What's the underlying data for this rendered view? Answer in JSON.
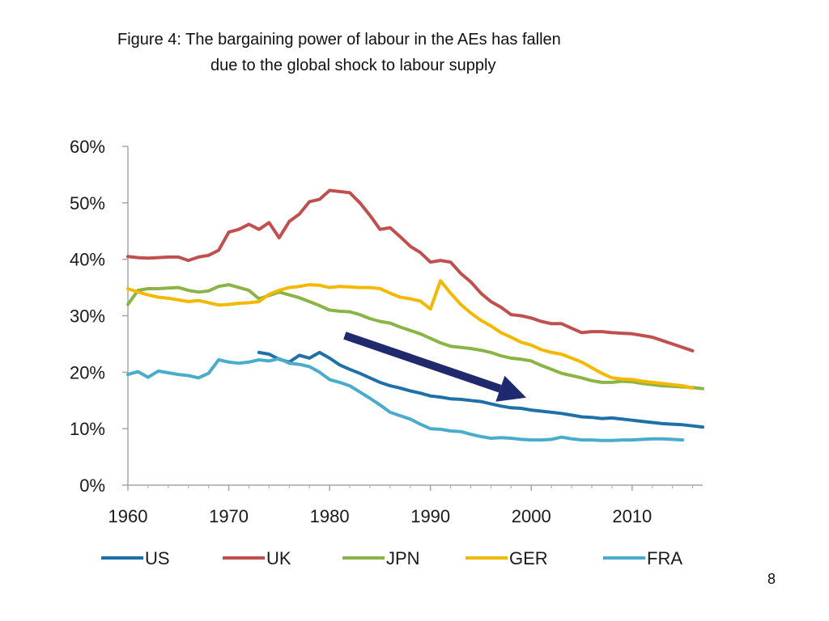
{
  "title": {
    "line1": "Figure 4:  The bargaining power of labour in the AEs has fallen",
    "line2": "due to the global shock to labour supply"
  },
  "page_number": "8",
  "chart_data": {
    "type": "line",
    "xlim": [
      1960,
      2017
    ],
    "ylim": [
      0,
      60
    ],
    "x_ticks": [
      1960,
      1970,
      1980,
      1990,
      2000,
      2010
    ],
    "x_tick_labels": [
      "1960",
      "1970",
      "1980",
      "1990",
      "2000",
      "2010"
    ],
    "y_ticks": [
      0,
      10,
      20,
      30,
      40,
      50,
      60
    ],
    "y_tick_labels": [
      "0%",
      "10%",
      "20%",
      "30%",
      "40%",
      "50%",
      "60%"
    ],
    "grid": false,
    "legend_position": "bottom",
    "series": [
      {
        "name": "US",
        "color": "#1f6fa8",
        "points": [
          [
            1973,
            23.5
          ],
          [
            1974,
            23.2
          ],
          [
            1975,
            22.3
          ],
          [
            1976,
            21.8
          ],
          [
            1977,
            23.0
          ],
          [
            1978,
            22.5
          ],
          [
            1979,
            23.5
          ],
          [
            1980,
            22.5
          ],
          [
            1981,
            21.3
          ],
          [
            1982,
            20.5
          ],
          [
            1983,
            19.8
          ],
          [
            1984,
            19.0
          ],
          [
            1985,
            18.2
          ],
          [
            1986,
            17.6
          ],
          [
            1987,
            17.2
          ],
          [
            1988,
            16.7
          ],
          [
            1989,
            16.3
          ],
          [
            1990,
            15.8
          ],
          [
            1991,
            15.6
          ],
          [
            1992,
            15.3
          ],
          [
            1993,
            15.2
          ],
          [
            1994,
            15.0
          ],
          [
            1995,
            14.8
          ],
          [
            1996,
            14.4
          ],
          [
            1997,
            14.0
          ],
          [
            1998,
            13.7
          ],
          [
            1999,
            13.6
          ],
          [
            2000,
            13.3
          ],
          [
            2001,
            13.1
          ],
          [
            2002,
            12.9
          ],
          [
            2003,
            12.7
          ],
          [
            2004,
            12.4
          ],
          [
            2005,
            12.1
          ],
          [
            2006,
            12.0
          ],
          [
            2007,
            11.8
          ],
          [
            2008,
            11.9
          ],
          [
            2009,
            11.7
          ],
          [
            2010,
            11.5
          ],
          [
            2011,
            11.3
          ],
          [
            2012,
            11.1
          ],
          [
            2013,
            10.9
          ],
          [
            2014,
            10.8
          ],
          [
            2015,
            10.7
          ],
          [
            2016,
            10.5
          ],
          [
            2017,
            10.3
          ]
        ]
      },
      {
        "name": "UK",
        "color": "#c0504d",
        "points": [
          [
            1960,
            40.5
          ],
          [
            1961,
            40.3
          ],
          [
            1962,
            40.2
          ],
          [
            1963,
            40.3
          ],
          [
            1964,
            40.4
          ],
          [
            1965,
            40.4
          ],
          [
            1966,
            39.8
          ],
          [
            1967,
            40.4
          ],
          [
            1968,
            40.7
          ],
          [
            1969,
            41.6
          ],
          [
            1970,
            44.8
          ],
          [
            1971,
            45.3
          ],
          [
            1972,
            46.2
          ],
          [
            1973,
            45.3
          ],
          [
            1974,
            46.5
          ],
          [
            1975,
            43.8
          ],
          [
            1976,
            46.7
          ],
          [
            1977,
            48.0
          ],
          [
            1978,
            50.2
          ],
          [
            1979,
            50.6
          ],
          [
            1980,
            52.2
          ],
          [
            1981,
            52.0
          ],
          [
            1982,
            51.8
          ],
          [
            1983,
            50.0
          ],
          [
            1984,
            47.8
          ],
          [
            1985,
            45.3
          ],
          [
            1986,
            45.6
          ],
          [
            1987,
            44.0
          ],
          [
            1988,
            42.3
          ],
          [
            1989,
            41.2
          ],
          [
            1990,
            39.5
          ],
          [
            1991,
            39.8
          ],
          [
            1992,
            39.5
          ],
          [
            1993,
            37.5
          ],
          [
            1994,
            36.0
          ],
          [
            1995,
            34.0
          ],
          [
            1996,
            32.5
          ],
          [
            1997,
            31.5
          ],
          [
            1998,
            30.2
          ],
          [
            1999,
            30.0
          ],
          [
            2000,
            29.6
          ],
          [
            2001,
            29.0
          ],
          [
            2002,
            28.6
          ],
          [
            2003,
            28.6
          ],
          [
            2004,
            27.8
          ],
          [
            2005,
            27.0
          ],
          [
            2006,
            27.2
          ],
          [
            2007,
            27.2
          ],
          [
            2008,
            27.0
          ],
          [
            2009,
            26.9
          ],
          [
            2010,
            26.8
          ],
          [
            2011,
            26.5
          ],
          [
            2012,
            26.2
          ],
          [
            2013,
            25.6
          ],
          [
            2014,
            25.0
          ],
          [
            2015,
            24.4
          ],
          [
            2016,
            23.8
          ]
        ]
      },
      {
        "name": "JPN",
        "color": "#8ab446",
        "points": [
          [
            1960,
            32.0
          ],
          [
            1961,
            34.5
          ],
          [
            1962,
            34.8
          ],
          [
            1963,
            34.8
          ],
          [
            1964,
            34.9
          ],
          [
            1965,
            35.0
          ],
          [
            1966,
            34.5
          ],
          [
            1967,
            34.2
          ],
          [
            1968,
            34.4
          ],
          [
            1969,
            35.2
          ],
          [
            1970,
            35.5
          ],
          [
            1971,
            35.0
          ],
          [
            1972,
            34.5
          ],
          [
            1973,
            33.0
          ],
          [
            1974,
            33.6
          ],
          [
            1975,
            34.2
          ],
          [
            1976,
            33.7
          ],
          [
            1977,
            33.2
          ],
          [
            1978,
            32.5
          ],
          [
            1979,
            31.8
          ],
          [
            1980,
            31.0
          ],
          [
            1981,
            30.8
          ],
          [
            1982,
            30.7
          ],
          [
            1983,
            30.2
          ],
          [
            1984,
            29.5
          ],
          [
            1985,
            29.0
          ],
          [
            1986,
            28.7
          ],
          [
            1987,
            28.0
          ],
          [
            1988,
            27.4
          ],
          [
            1989,
            26.8
          ],
          [
            1990,
            26.0
          ],
          [
            1991,
            25.2
          ],
          [
            1992,
            24.6
          ],
          [
            1993,
            24.4
          ],
          [
            1994,
            24.2
          ],
          [
            1995,
            23.9
          ],
          [
            1996,
            23.5
          ],
          [
            1997,
            22.9
          ],
          [
            1998,
            22.5
          ],
          [
            1999,
            22.3
          ],
          [
            2000,
            22.0
          ],
          [
            2001,
            21.2
          ],
          [
            2002,
            20.5
          ],
          [
            2003,
            19.8
          ],
          [
            2004,
            19.4
          ],
          [
            2005,
            19.0
          ],
          [
            2006,
            18.5
          ],
          [
            2007,
            18.2
          ],
          [
            2008,
            18.2
          ],
          [
            2009,
            18.4
          ],
          [
            2010,
            18.3
          ],
          [
            2011,
            18.0
          ],
          [
            2012,
            17.8
          ],
          [
            2013,
            17.6
          ],
          [
            2014,
            17.5
          ],
          [
            2015,
            17.4
          ],
          [
            2016,
            17.3
          ],
          [
            2017,
            17.1
          ]
        ]
      },
      {
        "name": "GER",
        "color": "#f5b800",
        "points": [
          [
            1960,
            34.8
          ],
          [
            1961,
            34.2
          ],
          [
            1962,
            33.7
          ],
          [
            1963,
            33.3
          ],
          [
            1964,
            33.1
          ],
          [
            1965,
            32.8
          ],
          [
            1966,
            32.5
          ],
          [
            1967,
            32.7
          ],
          [
            1968,
            32.3
          ],
          [
            1969,
            31.9
          ],
          [
            1970,
            32.0
          ],
          [
            1971,
            32.2
          ],
          [
            1972,
            32.3
          ],
          [
            1973,
            32.5
          ],
          [
            1974,
            33.8
          ],
          [
            1975,
            34.5
          ],
          [
            1976,
            35.0
          ],
          [
            1977,
            35.2
          ],
          [
            1978,
            35.5
          ],
          [
            1979,
            35.4
          ],
          [
            1980,
            35.0
          ],
          [
            1981,
            35.2
          ],
          [
            1982,
            35.1
          ],
          [
            1983,
            35.0
          ],
          [
            1984,
            35.0
          ],
          [
            1985,
            34.8
          ],
          [
            1986,
            34.0
          ],
          [
            1987,
            33.3
          ],
          [
            1988,
            33.0
          ],
          [
            1989,
            32.6
          ],
          [
            1990,
            31.2
          ],
          [
            1991,
            36.2
          ],
          [
            1992,
            34.0
          ],
          [
            1993,
            32.0
          ],
          [
            1994,
            30.5
          ],
          [
            1995,
            29.2
          ],
          [
            1996,
            28.2
          ],
          [
            1997,
            27.0
          ],
          [
            1998,
            26.2
          ],
          [
            1999,
            25.3
          ],
          [
            2000,
            24.8
          ],
          [
            2001,
            24.0
          ],
          [
            2002,
            23.5
          ],
          [
            2003,
            23.2
          ],
          [
            2004,
            22.5
          ],
          [
            2005,
            21.8
          ],
          [
            2006,
            20.8
          ],
          [
            2007,
            19.8
          ],
          [
            2008,
            19.0
          ],
          [
            2009,
            18.8
          ],
          [
            2010,
            18.7
          ],
          [
            2011,
            18.4
          ],
          [
            2012,
            18.2
          ],
          [
            2013,
            18.0
          ],
          [
            2014,
            17.8
          ],
          [
            2015,
            17.6
          ],
          [
            2016,
            17.2
          ]
        ]
      },
      {
        "name": "FRA",
        "color": "#4aaccc",
        "points": [
          [
            1960,
            19.6
          ],
          [
            1961,
            20.1
          ],
          [
            1962,
            19.1
          ],
          [
            1963,
            20.2
          ],
          [
            1964,
            19.9
          ],
          [
            1965,
            19.6
          ],
          [
            1966,
            19.4
          ],
          [
            1967,
            19.0
          ],
          [
            1968,
            19.8
          ],
          [
            1969,
            22.2
          ],
          [
            1970,
            21.8
          ],
          [
            1971,
            21.6
          ],
          [
            1972,
            21.8
          ],
          [
            1973,
            22.2
          ],
          [
            1974,
            22.0
          ],
          [
            1975,
            22.4
          ],
          [
            1976,
            21.6
          ],
          [
            1977,
            21.4
          ],
          [
            1978,
            21.0
          ],
          [
            1979,
            20.0
          ],
          [
            1980,
            18.7
          ],
          [
            1981,
            18.2
          ],
          [
            1982,
            17.6
          ],
          [
            1983,
            16.5
          ],
          [
            1984,
            15.4
          ],
          [
            1985,
            14.2
          ],
          [
            1986,
            12.9
          ],
          [
            1987,
            12.3
          ],
          [
            1988,
            11.7
          ],
          [
            1989,
            10.8
          ],
          [
            1990,
            10.0
          ],
          [
            1991,
            9.9
          ],
          [
            1992,
            9.6
          ],
          [
            1993,
            9.5
          ],
          [
            1994,
            9.0
          ],
          [
            1995,
            8.6
          ],
          [
            1996,
            8.3
          ],
          [
            1997,
            8.4
          ],
          [
            1998,
            8.3
          ],
          [
            1999,
            8.1
          ],
          [
            2000,
            8.0
          ],
          [
            2001,
            8.0
          ],
          [
            2002,
            8.1
          ],
          [
            2003,
            8.5
          ],
          [
            2004,
            8.2
          ],
          [
            2005,
            8.0
          ],
          [
            2006,
            8.0
          ],
          [
            2007,
            7.9
          ],
          [
            2008,
            7.9
          ],
          [
            2009,
            8.0
          ],
          [
            2010,
            8.0
          ],
          [
            2011,
            8.1
          ],
          [
            2012,
            8.2
          ],
          [
            2013,
            8.2
          ],
          [
            2014,
            8.1
          ],
          [
            2015,
            8.0
          ]
        ]
      }
    ],
    "annotations": [
      {
        "type": "arrow",
        "color": "#1f2a6e",
        "from": [
          1981.5,
          26.5
        ],
        "to": [
          1999.5,
          15.5
        ]
      }
    ]
  }
}
